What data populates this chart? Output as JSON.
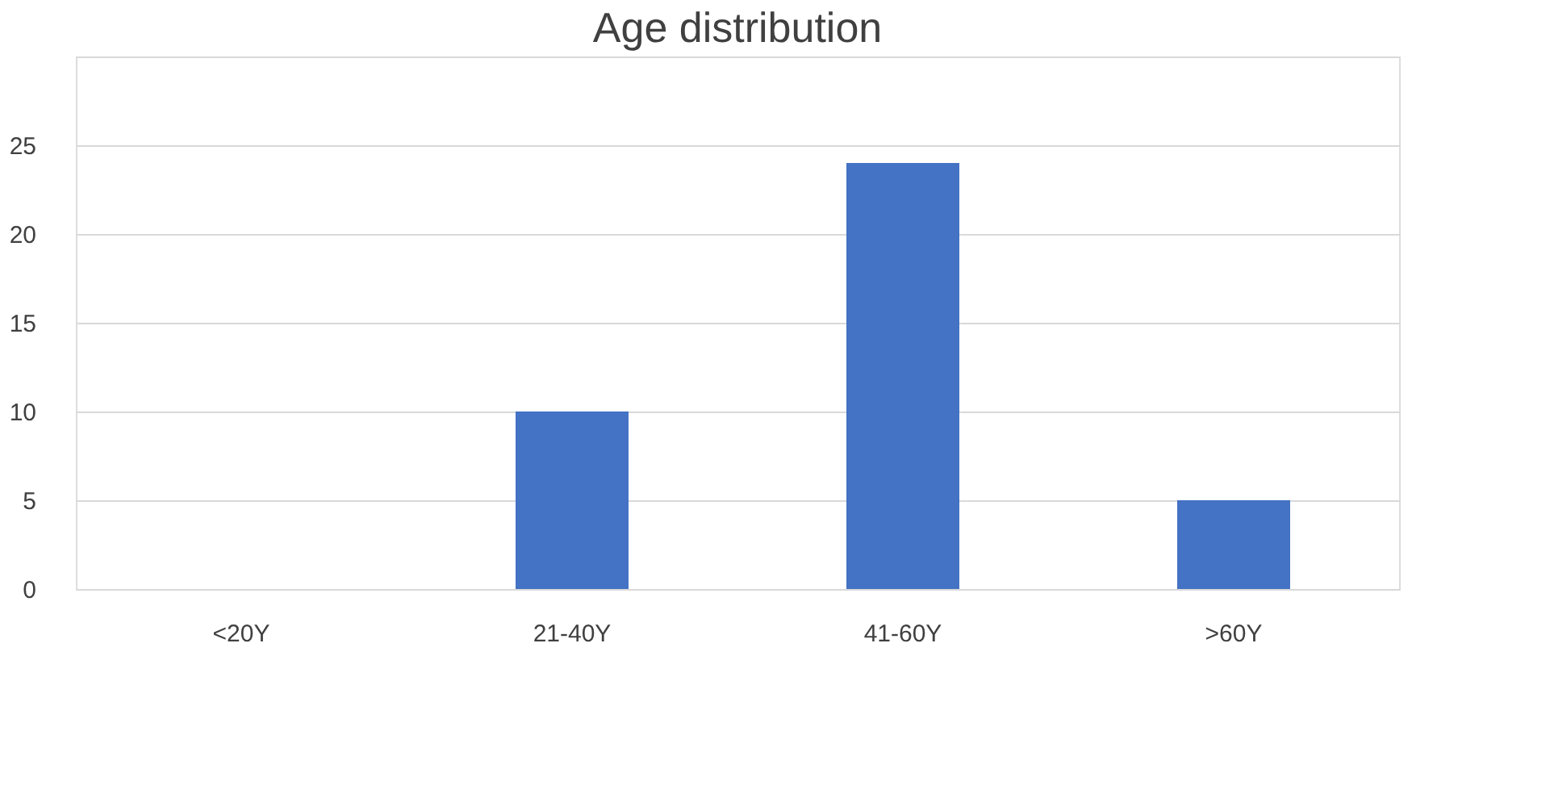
{
  "chart_data": {
    "type": "bar",
    "title": "Age distribution",
    "categories": [
      "<20Y",
      "21-40Y",
      "41-60Y",
      ">60Y"
    ],
    "values": [
      0,
      10,
      24,
      5
    ],
    "color": "#4472c4",
    "ylim": [
      0,
      30
    ],
    "yticks": [
      0,
      5,
      10,
      15,
      20,
      25,
      {
        "value": 30,
        "label": null
      }
    ],
    "grid": "y"
  }
}
